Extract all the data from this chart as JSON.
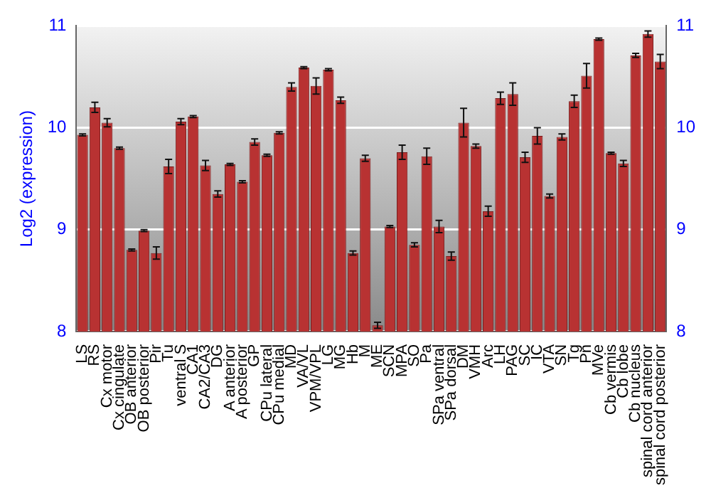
{
  "chart_data": {
    "type": "bar",
    "ylabel": "Log2 (expression)",
    "categories": [
      "LS",
      "RS",
      "Cx motor",
      "Cx cingulate",
      "OB anterior",
      "OB posterior",
      "Pir",
      "Tu",
      "ventral S",
      "CA1",
      "CA2/CA3",
      "DG",
      "A anterior",
      "A posterior",
      "GP",
      "CPu lateral",
      "CPu medial",
      "MD",
      "VA/VL",
      "VPM/VPL",
      "LG",
      "MG",
      "Hb",
      "M",
      "ME",
      "SCN",
      "MPA",
      "SO",
      "Pa",
      "SPa ventral",
      "SPa dorsal",
      "DM",
      "VMH",
      "Arc",
      "LH",
      "PAG",
      "SC",
      "IC",
      "VTA",
      "SN",
      "Tg",
      "Pn",
      "MVe",
      "Cb vermis",
      "Cb lobe",
      "Cb nucleus",
      "spinal cord anterior",
      "spinal cord posterior"
    ],
    "series": [
      {
        "color": "#b83232",
        "values": [
          9.93,
          10.2,
          10.05,
          9.8,
          8.8,
          8.99,
          8.77,
          9.62,
          10.06,
          10.11,
          9.63,
          9.35,
          9.64,
          9.47,
          9.86,
          9.73,
          9.95,
          10.4,
          10.59,
          10.41,
          10.57,
          10.27,
          8.77,
          9.7,
          8.06,
          9.03,
          9.76,
          8.85,
          9.72,
          9.03,
          8.74,
          10.05,
          9.82,
          9.18,
          10.29,
          10.33,
          9.71,
          9.92,
          9.33,
          9.91,
          10.26,
          10.51,
          10.87,
          9.75,
          9.65,
          10.71,
          10.92,
          10.65
        ],
        "errors": [
          0.01,
          0.05,
          0.04,
          0.01,
          0.01,
          0.01,
          0.06,
          0.07,
          0.03,
          0.01,
          0.05,
          0.03,
          0.01,
          0.01,
          0.03,
          0.01,
          0.01,
          0.04,
          0.01,
          0.08,
          0.01,
          0.03,
          0.02,
          0.03,
          0.03,
          0.01,
          0.07,
          0.02,
          0.08,
          0.06,
          0.04,
          0.14,
          0.02,
          0.05,
          0.06,
          0.11,
          0.05,
          0.08,
          0.02,
          0.03,
          0.06,
          0.12,
          0.01,
          0.01,
          0.03,
          0.02,
          0.03,
          0.07
        ]
      }
    ],
    "ylim": [
      8,
      11
    ],
    "yticks": [
      8,
      9,
      10,
      11
    ],
    "y2lim": [
      8,
      11
    ],
    "y2ticks": [
      8,
      9,
      10,
      11
    ],
    "grid": "y",
    "legend": false
  }
}
